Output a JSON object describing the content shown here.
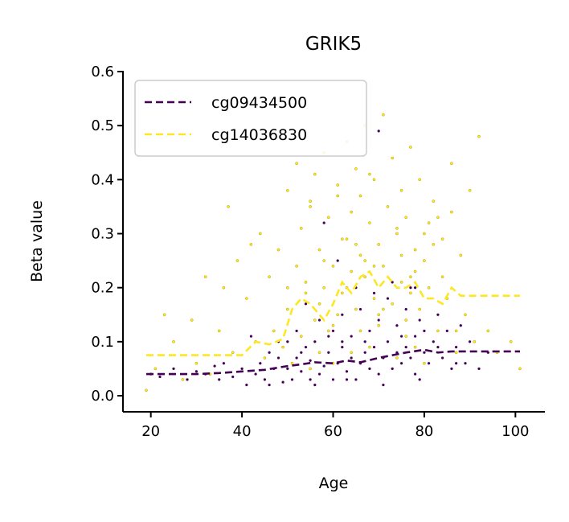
{
  "chart_data": {
    "type": "scatter",
    "title": "GRIK5",
    "xlabel": "Age",
    "ylabel": "Beta value",
    "xlim": [
      15,
      105
    ],
    "ylim": [
      -0.03,
      0.6
    ],
    "xticks": [
      20,
      40,
      60,
      80,
      100
    ],
    "yticks": [
      0.0,
      0.1,
      0.2,
      0.3,
      0.4,
      0.5,
      0.6
    ],
    "xtick_labels": [
      "20",
      "40",
      "60",
      "80",
      "100"
    ],
    "ytick_labels": [
      "0.0",
      "0.1",
      "0.2",
      "0.3",
      "0.4",
      "0.5",
      "0.6"
    ],
    "legend": {
      "position": "top-left",
      "entries": [
        "cg09434500",
        "cg14036830"
      ]
    },
    "grid": false,
    "series": [
      {
        "name": "cg09434500",
        "color": "#440154",
        "trend": {
          "x": [
            19,
            25,
            30,
            35,
            40,
            45,
            50,
            53,
            56,
            60,
            63,
            66,
            70,
            73,
            76,
            80,
            83,
            86,
            90,
            95,
            101
          ],
          "y": [
            0.04,
            0.04,
            0.04,
            0.042,
            0.045,
            0.048,
            0.055,
            0.058,
            0.062,
            0.06,
            0.065,
            0.062,
            0.07,
            0.075,
            0.08,
            0.085,
            0.08,
            0.082,
            0.082,
            0.082,
            0.082
          ]
        },
        "points": {
          "x": [
            20,
            22,
            25,
            28,
            30,
            32,
            34,
            35,
            36,
            38,
            40,
            41,
            42,
            43,
            44,
            45,
            46,
            47,
            48,
            49,
            50,
            50,
            51,
            52,
            52,
            53,
            54,
            55,
            55,
            56,
            57,
            57,
            58,
            59,
            60,
            60,
            61,
            62,
            62,
            63,
            64,
            64,
            65,
            66,
            66,
            67,
            68,
            68,
            69,
            70,
            70,
            71,
            72,
            72,
            73,
            74,
            74,
            75,
            76,
            76,
            77,
            78,
            78,
            79,
            80,
            80,
            81,
            82,
            83,
            84,
            85,
            86,
            87,
            88,
            89,
            90,
            92,
            94,
            46,
            48,
            53,
            56,
            59,
            63,
            67,
            71,
            75,
            79,
            83,
            87,
            58,
            61,
            65,
            69,
            73,
            77,
            54,
            70,
            62,
            78
          ],
          "y": [
            0.04,
            0.035,
            0.05,
            0.03,
            0.045,
            0.04,
            0.055,
            0.03,
            0.06,
            0.035,
            0.05,
            0.02,
            0.11,
            0.04,
            0.06,
            0.03,
            0.08,
            0.05,
            0.07,
            0.025,
            0.05,
            0.1,
            0.03,
            0.07,
            0.12,
            0.045,
            0.09,
            0.03,
            0.065,
            0.1,
            0.04,
            0.14,
            0.055,
            0.08,
            0.03,
            0.12,
            0.06,
            0.09,
            0.15,
            0.045,
            0.07,
            0.11,
            0.03,
            0.06,
            0.16,
            0.08,
            0.05,
            0.12,
            0.09,
            0.04,
            0.14,
            0.07,
            0.1,
            0.18,
            0.05,
            0.08,
            0.13,
            0.06,
            0.09,
            0.16,
            0.07,
            0.11,
            0.04,
            0.14,
            0.08,
            0.12,
            0.06,
            0.1,
            0.15,
            0.07,
            0.12,
            0.05,
            0.09,
            0.13,
            0.06,
            0.1,
            0.05,
            0.08,
            0.02,
            0.1,
            0.08,
            0.02,
            0.11,
            0.03,
            0.1,
            0.02,
            0.11,
            0.03,
            0.09,
            0.06,
            0.32,
            0.25,
            0.2,
            0.19,
            0.21,
            0.2,
            0.17,
            0.49,
            0.1,
            0.2
          ]
        }
      },
      {
        "name": "cg14036830",
        "color": "#fde725",
        "trend": {
          "x": [
            19,
            25,
            30,
            35,
            40,
            43,
            46,
            49,
            51,
            53,
            55,
            58,
            60,
            62,
            64,
            66,
            68,
            70,
            72,
            74,
            76,
            78,
            80,
            82,
            84,
            86,
            88,
            92,
            101
          ],
          "y": [
            0.075,
            0.075,
            0.075,
            0.075,
            0.075,
            0.1,
            0.095,
            0.105,
            0.16,
            0.18,
            0.17,
            0.14,
            0.17,
            0.21,
            0.19,
            0.22,
            0.23,
            0.2,
            0.22,
            0.2,
            0.2,
            0.21,
            0.18,
            0.18,
            0.17,
            0.2,
            0.185,
            0.185,
            0.185
          ]
        },
        "points": {
          "x": [
            19,
            21,
            23,
            25,
            27,
            29,
            30,
            32,
            33,
            35,
            36,
            37,
            38,
            39,
            40,
            41,
            42,
            43,
            44,
            45,
            46,
            47,
            48,
            49,
            50,
            50,
            51,
            52,
            52,
            53,
            53,
            54,
            55,
            55,
            56,
            56,
            57,
            57,
            58,
            58,
            59,
            59,
            60,
            60,
            61,
            61,
            62,
            62,
            63,
            63,
            64,
            64,
            65,
            65,
            66,
            66,
            67,
            67,
            68,
            68,
            69,
            69,
            70,
            70,
            71,
            71,
            72,
            72,
            73,
            73,
            74,
            74,
            75,
            75,
            76,
            76,
            77,
            77,
            78,
            78,
            79,
            79,
            80,
            80,
            81,
            82,
            83,
            84,
            85,
            86,
            87,
            88,
            89,
            90,
            91,
            92,
            94,
            96,
            99,
            101,
            54,
            58,
            62,
            66,
            70,
            74,
            78,
            82,
            86,
            50,
            60,
            64,
            68,
            72,
            76,
            80,
            84,
            57,
            63,
            69,
            75,
            81,
            87,
            55,
            65,
            71,
            77,
            83,
            61,
            67
          ],
          "y": [
            0.01,
            0.05,
            0.15,
            0.1,
            0.03,
            0.14,
            0.06,
            0.22,
            0.04,
            0.12,
            0.2,
            0.35,
            0.08,
            0.25,
            0.05,
            0.18,
            0.28,
            0.1,
            0.3,
            0.07,
            0.22,
            0.12,
            0.27,
            0.09,
            0.16,
            0.38,
            0.06,
            0.24,
            0.43,
            0.11,
            0.31,
            0.19,
            0.05,
            0.36,
            0.14,
            0.41,
            0.08,
            0.27,
            0.2,
            0.45,
            0.12,
            0.33,
            0.06,
            0.24,
            0.15,
            0.39,
            0.1,
            0.29,
            0.2,
            0.47,
            0.08,
            0.34,
            0.16,
            0.42,
            0.12,
            0.26,
            0.22,
            0.5,
            0.09,
            0.32,
            0.18,
            0.4,
            0.13,
            0.28,
            0.24,
            0.52,
            0.1,
            0.35,
            0.17,
            0.44,
            0.07,
            0.3,
            0.21,
            0.38,
            0.11,
            0.33,
            0.19,
            0.46,
            0.09,
            0.27,
            0.16,
            0.4,
            0.06,
            0.25,
            0.2,
            0.36,
            0.12,
            0.29,
            0.18,
            0.43,
            0.08,
            0.26,
            0.15,
            0.38,
            0.1,
            0.48,
            0.12,
            0.08,
            0.1,
            0.05,
            0.21,
            0.25,
            0.19,
            0.37,
            0.15,
            0.31,
            0.23,
            0.28,
            0.34,
            0.2,
            0.13,
            0.23,
            0.41,
            0.18,
            0.14,
            0.3,
            0.22,
            0.17,
            0.29,
            0.24,
            0.26,
            0.32,
            0.12,
            0.35,
            0.28,
            0.16,
            0.22,
            0.33,
            0.37,
            0.25
          ]
        }
      }
    ]
  }
}
